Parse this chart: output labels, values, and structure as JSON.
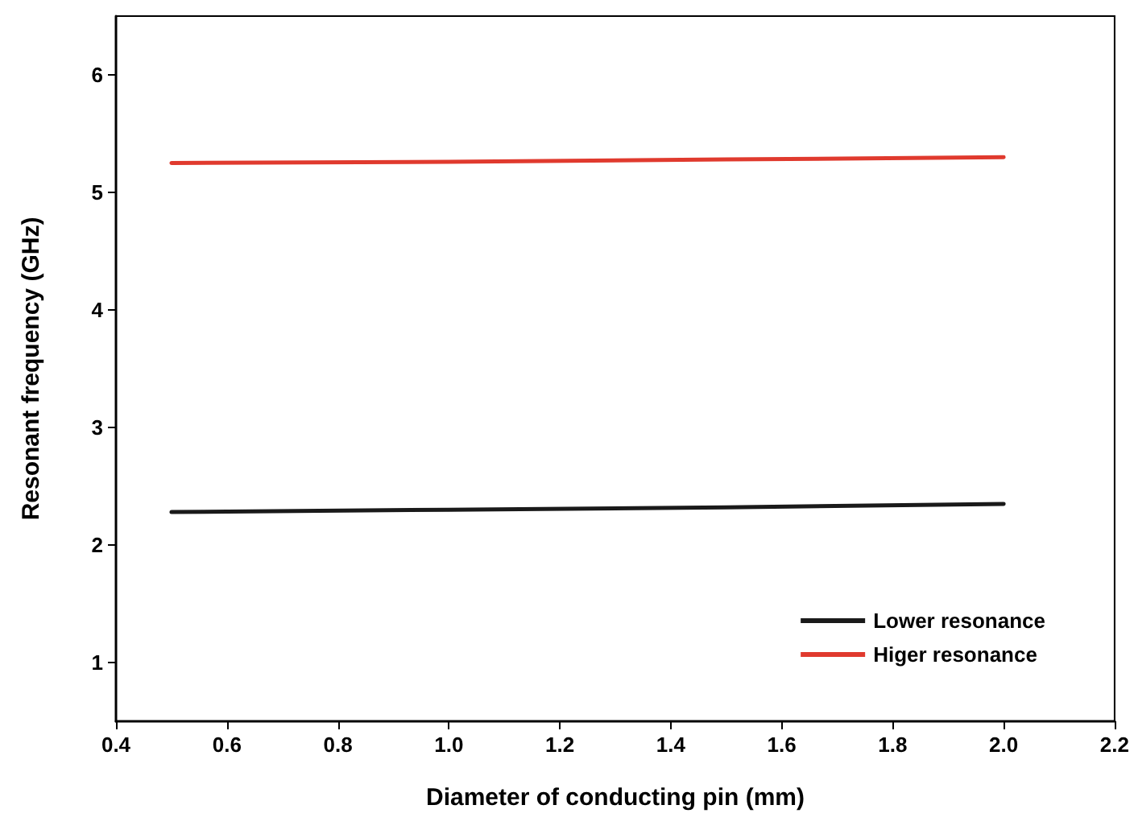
{
  "chart_data": {
    "type": "line",
    "xlabel": "Diameter of conducting pin (mm)",
    "ylabel": "Resonant frequency (GHz)",
    "x": [
      0.5,
      1.0,
      1.5,
      2.0
    ],
    "series": [
      {
        "name": "Lower resonance",
        "color": "#1a1a1a",
        "values": [
          2.28,
          2.3,
          2.32,
          2.35
        ]
      },
      {
        "name": "Higer resonance",
        "color": "#e03a2e",
        "values": [
          5.25,
          5.26,
          5.28,
          5.3
        ]
      }
    ],
    "xlim": [
      0.4,
      2.2
    ],
    "xticks": [
      {
        "value": 0.4,
        "label": "0.4"
      },
      {
        "value": 0.6,
        "label": "0.6"
      },
      {
        "value": 0.8,
        "label": "0.8"
      },
      {
        "value": 1.0,
        "label": "1.0"
      },
      {
        "value": 1.2,
        "label": "1.2"
      },
      {
        "value": 1.4,
        "label": "1.4"
      },
      {
        "value": 1.6,
        "label": "1.6"
      },
      {
        "value": 1.8,
        "label": "1.8"
      },
      {
        "value": 2.0,
        "label": "2.0"
      },
      {
        "value": 2.2,
        "label": "2.2"
      }
    ],
    "ylim": [
      0.5,
      6.5
    ],
    "yticks": [
      1,
      2,
      3,
      4,
      5,
      6
    ],
    "grid": false,
    "legend": "bottom right",
    "marker": "none",
    "line_style": "solid"
  }
}
